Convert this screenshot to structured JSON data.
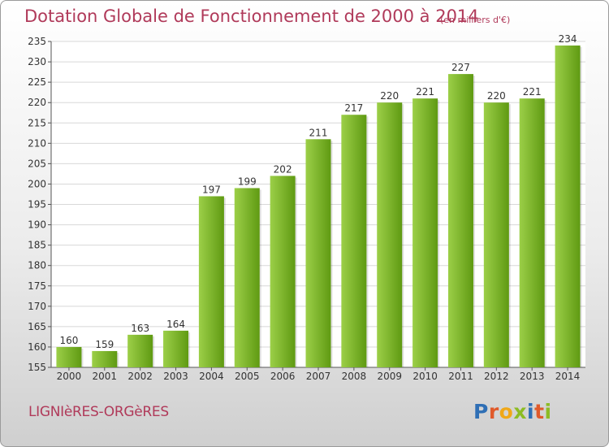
{
  "header": {
    "title": "Dotation Globale de Fonctionnement de 2000 à 2014",
    "subtitle": "(en milliers d'€)"
  },
  "footer": {
    "commune": "LIGNIèRES-ORGèRES",
    "brand_letters": [
      "P",
      "r",
      "o",
      "x",
      "i",
      "t",
      "i"
    ],
    "brand_colors": [
      "#2f6fb5",
      "#e05a2b",
      "#f0a818",
      "#8cbc24",
      "#2f6fb5",
      "#e05a2b",
      "#8cbc24"
    ]
  },
  "colors": {
    "bar_light": "#9ccf48",
    "bar_dark": "#5f9a12",
    "grid": "#d8d8d8",
    "axis": "#555555",
    "text": "#333333",
    "title": "#b03a5a"
  },
  "chart_data": {
    "type": "bar",
    "title": "Dotation Globale de Fonctionnement de 2000 à 2014",
    "subtitle": "(en milliers d'€)",
    "xlabel": "",
    "ylabel": "",
    "categories": [
      "2000",
      "2001",
      "2002",
      "2003",
      "2004",
      "2005",
      "2006",
      "2007",
      "2008",
      "2009",
      "2010",
      "2011",
      "2012",
      "2013",
      "2014"
    ],
    "values": [
      160,
      159,
      163,
      164,
      197,
      199,
      202,
      211,
      217,
      220,
      221,
      227,
      220,
      221,
      234
    ],
    "ylim": [
      155,
      235
    ],
    "yticks": [
      155,
      160,
      165,
      170,
      175,
      180,
      185,
      190,
      195,
      200,
      205,
      210,
      215,
      220,
      225,
      230,
      235
    ],
    "grid": true,
    "legend": "none"
  }
}
